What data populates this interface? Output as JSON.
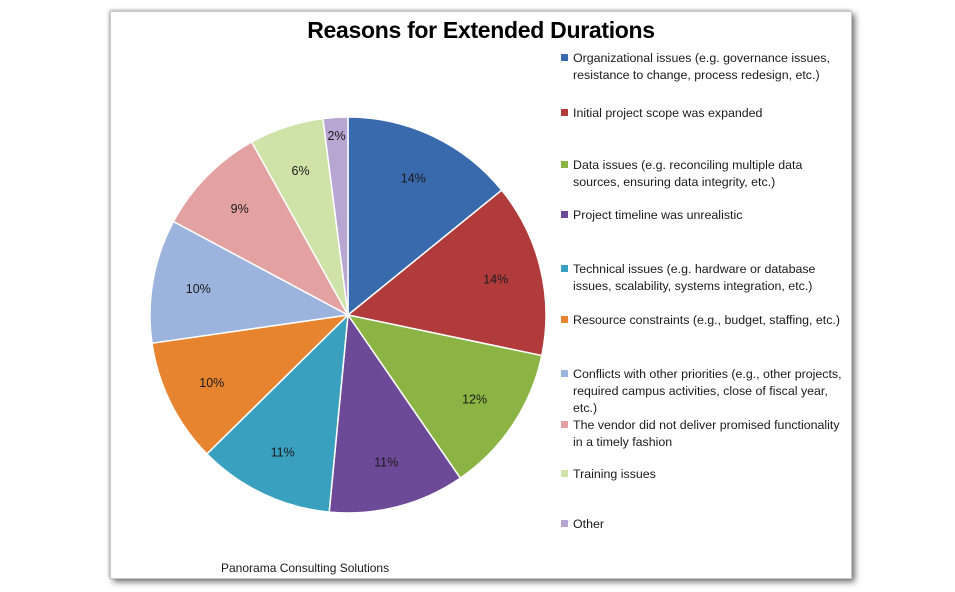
{
  "chart_data": {
    "type": "pie",
    "title": "Reasons for Extended Durations",
    "source": "Panorama Consulting Solutions",
    "slices": [
      {
        "label": "Organizational issues (e.g. governance issues, resistance to change, process redesign, etc.)",
        "value": 14,
        "display": "14%",
        "color": "#3a6aae"
      },
      {
        "label": "Initial project scope was expanded",
        "value": 14,
        "display": "14%",
        "color": "#b13b3b"
      },
      {
        "label": "Data issues (e.g. reconciling multiple data sources, ensuring data integrity, etc.)",
        "value": 12,
        "display": "12%",
        "color": "#8cb444"
      },
      {
        "label": "Project timeline was unrealistic",
        "value": 11,
        "display": "11%",
        "color": "#6c4a97"
      },
      {
        "label": "Technical issues (e.g. hardware or database issues, scalability, systems integration, etc.)",
        "value": 11,
        "display": "11%",
        "color": "#3aa0bf"
      },
      {
        "label": "Resource constraints (e.g., budget, staffing, etc.)",
        "value": 10,
        "display": "10%",
        "color": "#e7842f"
      },
      {
        "label": "Conflicts with other priorities (e.g., other projects, required campus activities, close of fiscal year, etc.)",
        "value": 10,
        "display": "10%",
        "color": "#9bb3dd"
      },
      {
        "label": "The vendor did not deliver promised functionality in a timely fashion",
        "value": 9,
        "display": "9%",
        "color": "#e4a1a1"
      },
      {
        "label": "Training issues",
        "value": 6,
        "display": "6%",
        "color": "#cfe2a8"
      },
      {
        "label": "Other",
        "value": 2,
        "display": "2%",
        "color": "#b8a6d2"
      }
    ],
    "legend_position": "right"
  }
}
